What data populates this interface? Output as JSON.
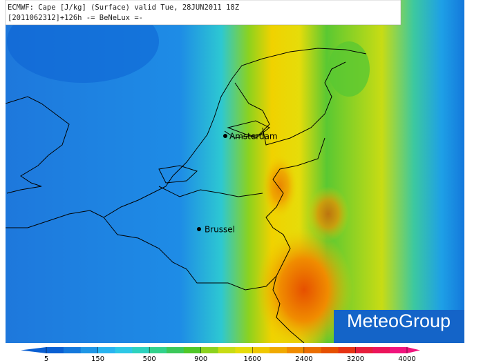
{
  "header": {
    "line1": "ECMWF: Cape [J/kg] (Surface) valid Tue, 28JUN2011 18Z",
    "line2": "[2011062312]+126h -= BeNeLux =-"
  },
  "cities": [
    {
      "label": "Amsterdam"
    },
    {
      "label": "Brussel"
    }
  ],
  "colorbar": {
    "ticks": [
      5,
      150,
      500,
      900,
      1600,
      2400,
      3200,
      4000
    ],
    "colors": [
      "#0a5fd2",
      "#1478dc",
      "#1e96e6",
      "#28b4f0",
      "#2dc8e6",
      "#2dd2be",
      "#32d28c",
      "#3cc85a",
      "#50c828",
      "#8cd21e",
      "#c8dc14",
      "#e6dc0a",
      "#f0c800",
      "#f0aa00",
      "#f08c00",
      "#eb6e00",
      "#e65000",
      "#e63214",
      "#e61e3c",
      "#eb145a",
      "#f0147d"
    ]
  },
  "logo": "MeteoGroup"
}
